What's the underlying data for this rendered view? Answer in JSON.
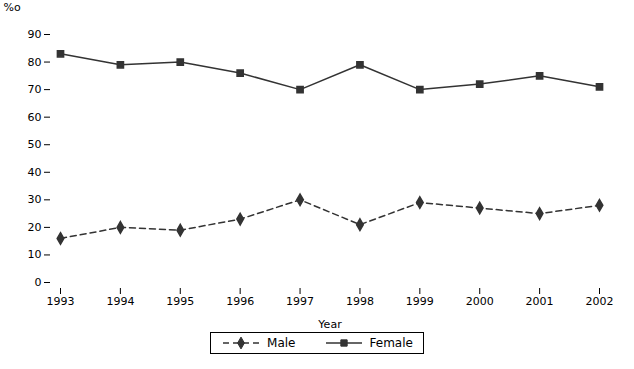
{
  "chart_data": {
    "type": "line",
    "x": [
      1993,
      1994,
      1995,
      1996,
      1997,
      1998,
      1999,
      2000,
      2001,
      2002
    ],
    "xlabel": "Year",
    "ylabel": "%o",
    "xlim": [
      1993,
      2002
    ],
    "xticks": [
      1993,
      1994,
      1995,
      1996,
      1997,
      1998,
      1999,
      2000,
      2001,
      2002
    ],
    "ylim": [
      0,
      90
    ],
    "yticks": [
      0,
      10,
      20,
      30,
      40,
      50,
      60,
      70,
      80,
      90
    ],
    "grid": false,
    "legend": "bottom",
    "series": [
      {
        "name": "Male",
        "color": "#333333",
        "line_style": "dashed",
        "marker": "diamond",
        "values": [
          16,
          20,
          19,
          23,
          30,
          21,
          29,
          27,
          25,
          28
        ]
      },
      {
        "name": "Female",
        "color": "#333333",
        "line_style": "solid",
        "marker": "square",
        "values": [
          83,
          79,
          80,
          76,
          70,
          79,
          70,
          72,
          75,
          71
        ]
      }
    ]
  }
}
